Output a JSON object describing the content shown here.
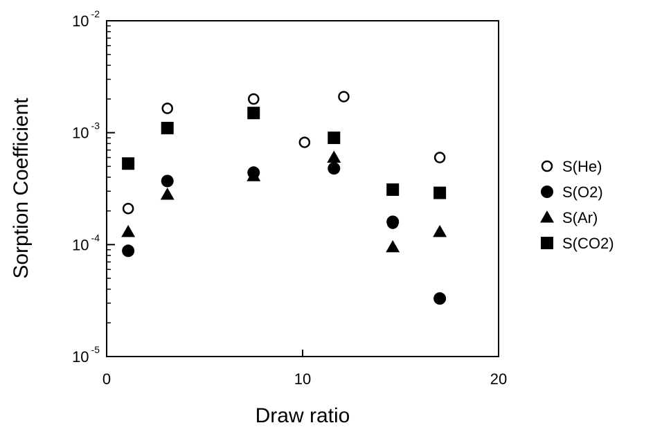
{
  "chart_data": {
    "type": "scatter",
    "xlabel": "Draw ratio",
    "ylabel": "Sorption Coefficient",
    "xlim": [
      0,
      20
    ],
    "ylim": [
      1e-05,
      0.01
    ],
    "yscale": "log",
    "x_ticks": [
      {
        "value": 0,
        "label": "0"
      },
      {
        "value": 10,
        "label": "10"
      },
      {
        "value": 20,
        "label": "20"
      }
    ],
    "y_ticks": [
      {
        "value": 1e-05,
        "base": "10",
        "exponent": "-5"
      },
      {
        "value": 0.0001,
        "base": "10",
        "exponent": "-4"
      },
      {
        "value": 0.001,
        "base": "10",
        "exponent": "-3"
      },
      {
        "value": 0.01,
        "base": "10",
        "exponent": "-2"
      }
    ],
    "legend_position": "right",
    "series": [
      {
        "name": "S(He)",
        "marker": "open-circle",
        "points": [
          {
            "x": 1.1,
            "y": 0.00021
          },
          {
            "x": 3.1,
            "y": 0.00165
          },
          {
            "x": 7.5,
            "y": 0.002
          },
          {
            "x": 10.1,
            "y": 0.00082
          },
          {
            "x": 12.1,
            "y": 0.0021
          },
          {
            "x": 14.6,
            "y": 0.000155
          },
          {
            "x": 17,
            "y": 0.0006
          }
        ]
      },
      {
        "name": "S(O2)",
        "marker": "filled-circle",
        "points": [
          {
            "x": 1.1,
            "y": 8.8e-05
          },
          {
            "x": 3.1,
            "y": 0.00037
          },
          {
            "x": 7.5,
            "y": 0.00044
          },
          {
            "x": 11.6,
            "y": 0.00048
          },
          {
            "x": 14.6,
            "y": 0.00016
          },
          {
            "x": 17,
            "y": 3.3e-05
          }
        ]
      },
      {
        "name": "S(Ar)",
        "marker": "filled-triangle",
        "points": [
          {
            "x": 1.1,
            "y": 0.00013
          },
          {
            "x": 3.1,
            "y": 0.00028
          },
          {
            "x": 7.5,
            "y": 0.00041
          },
          {
            "x": 11.6,
            "y": 0.0006
          },
          {
            "x": 14.6,
            "y": 9.5e-05
          },
          {
            "x": 17,
            "y": 0.00013
          }
        ]
      },
      {
        "name": "S(CO2)",
        "marker": "filled-square",
        "points": [
          {
            "x": 1.1,
            "y": 0.00053
          },
          {
            "x": 3.1,
            "y": 0.0011
          },
          {
            "x": 7.5,
            "y": 0.0015
          },
          {
            "x": 11.6,
            "y": 0.0009
          },
          {
            "x": 14.6,
            "y": 0.00031
          },
          {
            "x": 17,
            "y": 0.00029
          }
        ]
      }
    ]
  }
}
